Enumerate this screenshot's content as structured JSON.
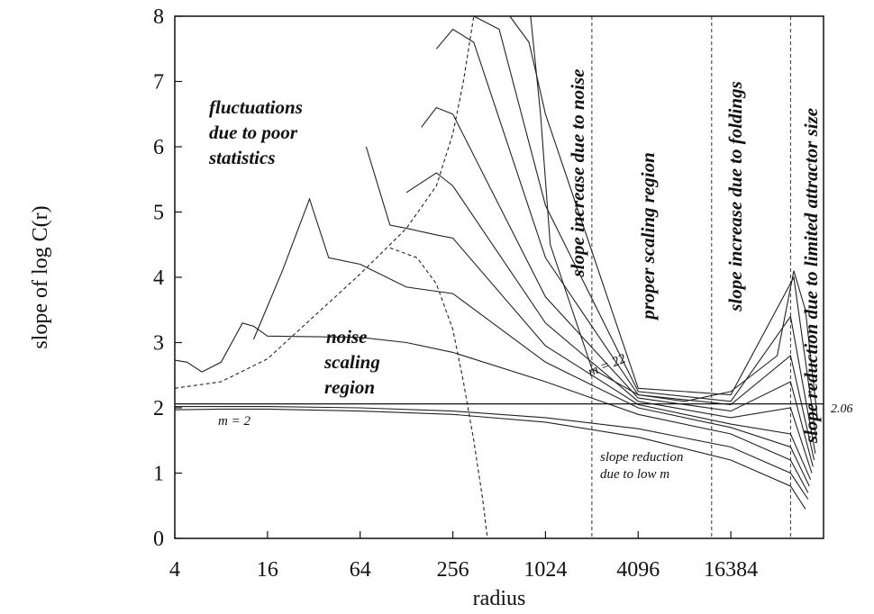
{
  "chart_data": {
    "type": "line",
    "xlabel": "radius",
    "ylabel": "slope of log C(r)",
    "xscale": "log2",
    "xlim": [
      4,
      65536
    ],
    "ylim": [
      0,
      8
    ],
    "xticks": [
      4,
      16,
      64,
      256,
      1024,
      4096,
      16384
    ],
    "yticks": [
      0,
      1,
      2,
      3,
      4,
      5,
      6,
      7,
      8
    ],
    "reference_line": {
      "y": 2.06,
      "label": "2.06"
    },
    "region_boundaries_x": [
      2048,
      12288,
      40000
    ],
    "annotations": [
      {
        "lines": [
          "fluctuations",
          "due to poor",
          "statistics"
        ]
      },
      {
        "lines": [
          "noise",
          "scaling",
          "region"
        ]
      },
      {
        "text": "m = 2"
      },
      {
        "text": "m = 22"
      },
      {
        "lines": [
          "slope reduction",
          "due to low m"
        ]
      },
      {
        "text": "slope increase due to noise",
        "orientation": "vertical"
      },
      {
        "text": "proper scaling region",
        "orientation": "vertical"
      },
      {
        "text": "slope increase due to foldings",
        "orientation": "vertical"
      },
      {
        "text": "slope reduction due to limited attractor size",
        "orientation": "vertical"
      }
    ],
    "series": [
      {
        "style": "solid",
        "x": [
          4,
          8,
          16,
          64,
          256,
          1024,
          4096,
          16384,
          40000,
          50000
        ],
        "y": [
          1.97,
          1.98,
          1.98,
          1.95,
          1.9,
          1.78,
          1.55,
          1.2,
          0.8,
          0.45
        ]
      },
      {
        "style": "solid",
        "x": [
          4,
          8,
          16,
          64,
          256,
          1024,
          4096,
          16384,
          40000,
          52000
        ],
        "y": [
          2.02,
          2.02,
          2.02,
          2.0,
          1.95,
          1.85,
          1.68,
          1.4,
          1.0,
          0.6
        ]
      },
      {
        "style": "solid",
        "x": [
          4,
          4.8,
          6,
          8,
          11,
          13,
          16,
          64,
          128,
          256,
          1024,
          4096,
          16384,
          40000,
          52000
        ],
        "y": [
          2.73,
          2.7,
          2.55,
          2.7,
          3.3,
          3.25,
          3.1,
          3.08,
          3.0,
          2.85,
          2.4,
          1.9,
          1.6,
          1.2,
          0.7
        ]
      },
      {
        "style": "solid",
        "x": [
          13,
          20,
          30,
          40,
          64,
          128,
          256,
          1024,
          4096,
          16384,
          40000,
          53000
        ],
        "y": [
          3.05,
          4.1,
          5.2,
          4.3,
          4.2,
          3.85,
          3.75,
          2.7,
          2.0,
          1.7,
          1.4,
          0.8
        ]
      },
      {
        "style": "solid",
        "x": [
          70,
          100,
          128,
          200,
          256,
          1024,
          4096,
          16384,
          40000,
          54000
        ],
        "y": [
          6.0,
          4.8,
          4.75,
          4.65,
          4.6,
          2.95,
          2.05,
          1.75,
          1.6,
          0.9
        ]
      },
      {
        "style": "solid",
        "x": [
          128,
          200,
          256,
          1024,
          4096,
          16384,
          40000,
          55000
        ],
        "y": [
          5.3,
          5.6,
          5.4,
          3.3,
          2.1,
          1.85,
          2.0,
          1.0
        ]
      },
      {
        "style": "solid",
        "x": [
          160,
          200,
          256,
          1024,
          4096,
          16384,
          40000,
          56000
        ],
        "y": [
          6.3,
          6.6,
          6.5,
          3.7,
          2.15,
          1.95,
          2.4,
          1.1
        ]
      },
      {
        "style": "solid",
        "x": [
          200,
          256,
          350,
          1024,
          4096,
          16384,
          40000,
          57000
        ],
        "y": [
          7.5,
          7.8,
          7.6,
          4.3,
          2.2,
          2.05,
          2.8,
          1.2
        ]
      },
      {
        "style": "solid",
        "x": [
          350,
          512,
          1024,
          4096,
          16384,
          40000,
          58000
        ],
        "y": [
          8.0,
          7.8,
          5.1,
          2.25,
          2.1,
          3.4,
          1.3
        ]
      },
      {
        "style": "solid",
        "x": [
          600,
          800,
          1024,
          4096,
          16384,
          42000,
          59000
        ],
        "y": [
          8.0,
          7.6,
          6.5,
          2.3,
          2.2,
          4.0,
          1.5
        ]
      },
      {
        "style": "solid",
        "x": [
          820,
          950,
          1100,
          2048,
          4096,
          8192,
          16384,
          32768,
          42000,
          50000,
          60000
        ],
        "y": [
          8.0,
          6.5,
          4.5,
          2.6,
          2.2,
          2.1,
          2.25,
          2.8,
          4.1,
          3.5,
          1.8
        ]
      },
      {
        "style": "dashed",
        "x": [
          4,
          8,
          16,
          32,
          64,
          128,
          200,
          256,
          300,
          350
        ],
        "y": [
          2.3,
          2.4,
          2.75,
          3.4,
          4.05,
          4.75,
          5.4,
          6.2,
          7.0,
          8.0
        ]
      },
      {
        "style": "dashed",
        "x": [
          100,
          150,
          200,
          256,
          300,
          350,
          400,
          430
        ],
        "y": [
          4.45,
          4.3,
          3.9,
          3.2,
          2.4,
          1.5,
          0.6,
          0.0
        ]
      }
    ]
  }
}
